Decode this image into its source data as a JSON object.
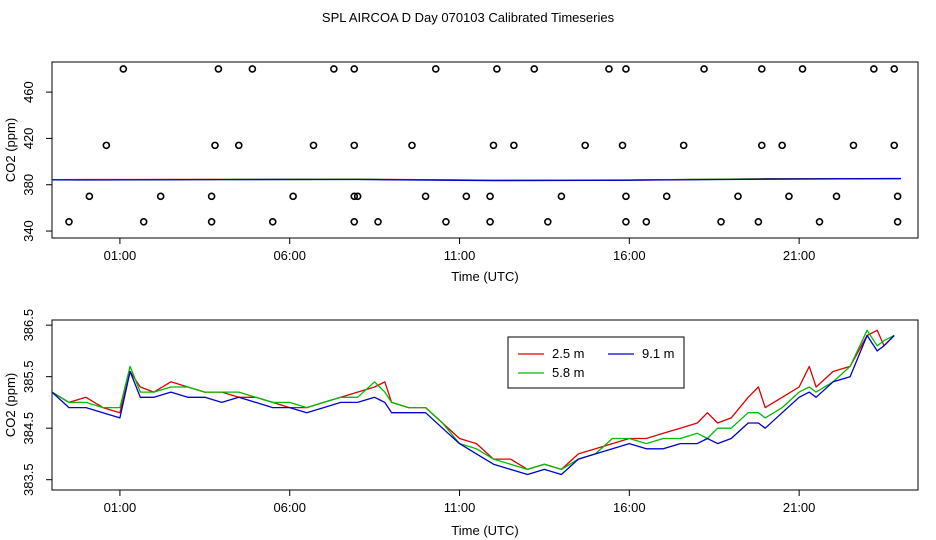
{
  "title": "SPL AIRCOA D  Day 070103  Calibrated Timeseries",
  "colors": {
    "h25": "#dd0000",
    "h58": "#00bb00",
    "h91": "#0000cc",
    "axis": "#000000"
  },
  "chart_data": [
    {
      "type": "scatter",
      "title": "",
      "xlabel": "Time (UTC)",
      "ylabel": "CO2 (ppm)",
      "xlim": [
        -1.0,
        24.5
      ],
      "ylim": [
        334,
        486
      ],
      "xticks": [
        1,
        6,
        11,
        16,
        21
      ],
      "xtick_labels": [
        "01:00",
        "06:00",
        "11:00",
        "16:00",
        "21:00"
      ],
      "yticks": [
        340,
        380,
        420,
        460
      ],
      "ytick_labels": [
        "340",
        "380",
        "420",
        "460"
      ],
      "points_x": [
        1.1,
        3.9,
        4.9,
        7.3,
        7.9,
        10.3,
        12.1,
        13.2,
        15.4,
        15.9,
        18.2,
        19.9,
        21.1,
        23.2,
        23.8,
        0.6,
        3.8,
        4.5,
        6.7,
        7.9,
        9.6,
        12.0,
        12.6,
        14.7,
        15.8,
        17.6,
        19.9,
        20.5,
        22.6,
        23.8,
        0.1,
        2.2,
        3.7,
        6.1,
        7.9,
        8.0,
        10.0,
        11.2,
        11.9,
        14.0,
        15.9,
        17.1,
        19.2,
        20.7,
        22.1,
        23.9,
        -0.5,
        1.7,
        3.7,
        5.5,
        7.9,
        8.6,
        10.6,
        11.9,
        13.6,
        15.9,
        16.5,
        18.7,
        19.8,
        21.6,
        23.9
      ],
      "points_y": [
        480,
        480,
        480,
        480,
        480,
        480,
        480,
        480,
        480,
        480,
        480,
        480,
        480,
        480,
        480,
        414,
        414,
        414,
        414,
        414,
        414,
        414,
        414,
        414,
        414,
        414,
        414,
        414,
        414,
        414,
        370,
        370,
        370,
        370,
        370,
        370,
        370,
        370,
        370,
        370,
        370,
        370,
        370,
        370,
        370,
        370,
        348,
        348,
        348,
        348,
        348,
        348,
        348,
        348,
        348,
        348,
        348,
        348,
        348,
        348,
        348
      ],
      "series": [
        {
          "name": "2.5 m",
          "color": "#dd0000",
          "x": [
            -1,
            0,
            4,
            8,
            12,
            16,
            20,
            24
          ],
          "y": [
            384.3,
            384.5,
            384.6,
            384.8,
            383.9,
            384.0,
            385.2,
            385.3
          ]
        },
        {
          "name": "5.8 m",
          "color": "#00bb00",
          "x": [
            -1,
            0,
            4,
            8,
            12,
            16,
            20,
            24
          ],
          "y": [
            384.4,
            384.3,
            384.5,
            384.7,
            383.8,
            384.1,
            385.0,
            385.2
          ]
        },
        {
          "name": "9.1 m",
          "color": "#0000cc",
          "x": [
            -1,
            0,
            4,
            8,
            12,
            16,
            20,
            24
          ],
          "y": [
            384.2,
            384.1,
            384.4,
            384.5,
            383.6,
            383.9,
            384.8,
            385.4
          ]
        }
      ]
    },
    {
      "type": "line",
      "title": "",
      "xlabel": "Time (UTC)",
      "ylabel": "CO2 (ppm)",
      "xlim": [
        -1.0,
        24.5
      ],
      "ylim": [
        383.3,
        386.6
      ],
      "xticks": [
        1,
        6,
        11,
        16,
        21
      ],
      "xtick_labels": [
        "01:00",
        "06:00",
        "11:00",
        "16:00",
        "21:00"
      ],
      "yticks": [
        383.5,
        384.5,
        385.5,
        386.5
      ],
      "ytick_labels": [
        "383.5",
        "384.5",
        "385.5",
        "386.5"
      ],
      "legend": {
        "position": "top-right",
        "entries": [
          "2.5 m",
          "5.8 m",
          "9.1 m"
        ]
      },
      "series": [
        {
          "name": "2.5 m",
          "color": "#dd0000",
          "x": [
            -1.0,
            -0.5,
            0.0,
            0.5,
            1.0,
            1.3,
            1.6,
            2.0,
            2.5,
            3.0,
            3.5,
            4.0,
            4.5,
            5.0,
            5.5,
            6.0,
            6.5,
            7.0,
            7.5,
            8.0,
            8.5,
            8.8,
            9.0,
            9.5,
            10.0,
            10.5,
            11.0,
            11.5,
            12.0,
            12.5,
            13.0,
            13.5,
            14.0,
            14.5,
            15.0,
            15.5,
            16.0,
            16.5,
            17.0,
            17.5,
            18.0,
            18.3,
            18.6,
            19.0,
            19.5,
            19.8,
            20.0,
            20.5,
            21.0,
            21.3,
            21.5,
            22.0,
            22.5,
            23.0,
            23.3,
            23.5,
            23.8
          ],
          "y": [
            385.2,
            385.0,
            385.1,
            384.9,
            384.8,
            385.6,
            385.3,
            385.2,
            385.4,
            385.3,
            385.2,
            385.2,
            385.1,
            385.1,
            385.0,
            384.9,
            384.9,
            385.0,
            385.1,
            385.2,
            385.3,
            385.4,
            385.0,
            384.9,
            384.9,
            384.6,
            384.3,
            384.2,
            383.9,
            383.9,
            383.7,
            383.8,
            383.7,
            384.0,
            384.1,
            384.2,
            384.3,
            384.3,
            384.4,
            384.5,
            384.6,
            384.8,
            384.6,
            384.7,
            385.1,
            385.3,
            384.9,
            385.1,
            385.3,
            385.7,
            385.3,
            385.6,
            385.7,
            386.3,
            386.4,
            386.1,
            386.3
          ]
        },
        {
          "name": "5.8 m",
          "color": "#00bb00",
          "x": [
            -1.0,
            -0.5,
            0.0,
            0.5,
            1.0,
            1.3,
            1.6,
            2.0,
            2.5,
            3.0,
            3.5,
            4.0,
            4.5,
            5.0,
            5.5,
            6.0,
            6.5,
            7.0,
            7.5,
            8.0,
            8.5,
            8.8,
            9.0,
            9.5,
            10.0,
            10.5,
            11.0,
            11.5,
            12.0,
            12.5,
            13.0,
            13.5,
            14.0,
            14.5,
            15.0,
            15.5,
            16.0,
            16.5,
            17.0,
            17.5,
            18.0,
            18.3,
            18.6,
            19.0,
            19.5,
            19.8,
            20.0,
            20.5,
            21.0,
            21.3,
            21.5,
            22.0,
            22.5,
            23.0,
            23.3,
            23.5,
            23.8
          ],
          "y": [
            385.2,
            385.0,
            385.0,
            384.9,
            384.9,
            385.7,
            385.2,
            385.2,
            385.3,
            385.3,
            385.2,
            385.2,
            385.2,
            385.1,
            385.0,
            385.0,
            384.9,
            385.0,
            385.1,
            385.1,
            385.4,
            385.2,
            385.0,
            384.9,
            384.9,
            384.6,
            384.2,
            384.1,
            383.9,
            383.8,
            383.7,
            383.8,
            383.7,
            383.9,
            384.0,
            384.3,
            384.3,
            384.2,
            384.3,
            384.3,
            384.4,
            384.3,
            384.5,
            384.5,
            384.8,
            384.8,
            384.7,
            384.9,
            385.2,
            385.3,
            385.2,
            385.4,
            385.7,
            386.4,
            386.1,
            386.2,
            386.3
          ]
        },
        {
          "name": "9.1 m",
          "color": "#0000cc",
          "x": [
            -1.0,
            -0.5,
            0.0,
            0.5,
            1.0,
            1.3,
            1.6,
            2.0,
            2.5,
            3.0,
            3.5,
            4.0,
            4.5,
            5.0,
            5.5,
            6.0,
            6.5,
            7.0,
            7.5,
            8.0,
            8.5,
            8.8,
            9.0,
            9.5,
            10.0,
            10.5,
            11.0,
            11.5,
            12.0,
            12.5,
            13.0,
            13.5,
            14.0,
            14.5,
            15.0,
            15.5,
            16.0,
            16.5,
            17.0,
            17.5,
            18.0,
            18.3,
            18.6,
            19.0,
            19.5,
            19.8,
            20.0,
            20.5,
            21.0,
            21.3,
            21.5,
            22.0,
            22.5,
            23.0,
            23.3,
            23.5,
            23.8
          ],
          "y": [
            385.2,
            384.9,
            384.9,
            384.8,
            384.7,
            385.6,
            385.1,
            385.1,
            385.2,
            385.1,
            385.1,
            385.0,
            385.1,
            385.0,
            384.9,
            384.9,
            384.8,
            384.9,
            385.0,
            385.0,
            385.1,
            385.0,
            384.8,
            384.8,
            384.8,
            384.5,
            384.2,
            384.0,
            383.8,
            383.7,
            383.6,
            383.7,
            383.6,
            383.9,
            384.0,
            384.1,
            384.2,
            384.1,
            384.1,
            384.2,
            384.2,
            384.3,
            384.2,
            384.3,
            384.6,
            384.6,
            384.5,
            384.8,
            385.1,
            385.2,
            385.1,
            385.4,
            385.5,
            386.3,
            386.0,
            386.1,
            386.3
          ]
        }
      ]
    }
  ]
}
